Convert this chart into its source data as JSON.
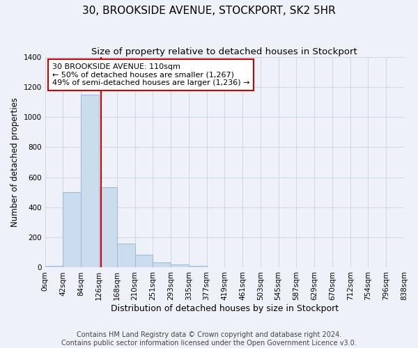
{
  "title": "30, BROOKSIDE AVENUE, STOCKPORT, SK2 5HR",
  "subtitle": "Size of property relative to detached houses in Stockport",
  "xlabel": "Distribution of detached houses by size in Stockport",
  "ylabel": "Number of detached properties",
  "bar_values": [
    10,
    500,
    1150,
    535,
    160,
    85,
    35,
    20,
    10,
    0,
    0,
    0,
    0,
    0,
    0,
    0,
    0,
    0,
    0,
    0
  ],
  "bin_labels": [
    "0sqm",
    "42sqm",
    "84sqm",
    "126sqm",
    "168sqm",
    "210sqm",
    "251sqm",
    "293sqm",
    "335sqm",
    "377sqm",
    "419sqm",
    "461sqm",
    "503sqm",
    "545sqm",
    "587sqm",
    "629sqm",
    "670sqm",
    "712sqm",
    "754sqm",
    "796sqm",
    "838sqm"
  ],
  "bar_color": "#ccdcef",
  "bar_edge_color": "#9ab8d8",
  "property_line_color": "#cc0000",
  "annotation_line1": "30 BROOKSIDE AVENUE: 110sqm",
  "annotation_line2": "← 50% of detached houses are smaller (1,267)",
  "annotation_line3": "49% of semi-detached houses are larger (1,236) →",
  "annotation_box_facecolor": "#ffffff",
  "annotation_box_edgecolor": "#cc0000",
  "ylim": [
    0,
    1400
  ],
  "yticks": [
    0,
    200,
    400,
    600,
    800,
    1000,
    1200,
    1400
  ],
  "footer_line1": "Contains HM Land Registry data © Crown copyright and database right 2024.",
  "footer_line2": "Contains public sector information licensed under the Open Government Licence v3.0.",
  "bg_color": "#eef2f8",
  "grid_color": "#d0d8e8",
  "title_fontsize": 11,
  "subtitle_fontsize": 9.5,
  "xlabel_fontsize": 9,
  "ylabel_fontsize": 8.5,
  "tick_fontsize": 7.5,
  "footer_fontsize": 7,
  "n_bins": 20,
  "property_bin": 2.62
}
